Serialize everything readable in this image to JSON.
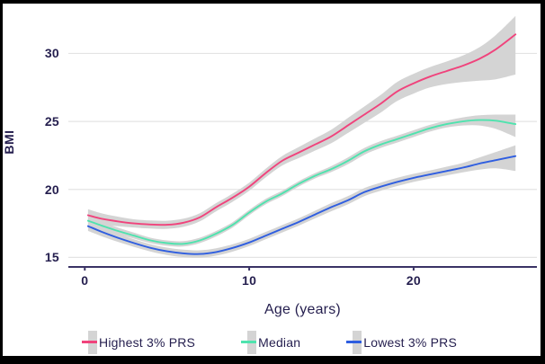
{
  "figure": {
    "background": "#ffffff",
    "frame_color": "#000000",
    "text_color": "#241e4e",
    "axis_color": "#3a3365",
    "grid_color": "#e4e4e4",
    "band_color": "#d4d4d4"
  },
  "chart_data": {
    "type": "line",
    "title": "",
    "xlabel": "Age (years)",
    "ylabel": "BMI",
    "xlim": [
      -1,
      27.5
    ],
    "ylim": [
      14.3,
      33.4
    ],
    "x_ticks": [
      0,
      10,
      20
    ],
    "y_ticks": [
      15,
      20,
      25,
      30
    ],
    "grid": true,
    "legend_position": "bottom",
    "x": [
      0.2,
      1,
      2,
      3,
      4,
      5,
      6,
      7,
      8,
      9,
      10,
      11,
      12,
      13,
      14,
      15,
      16,
      17,
      18,
      19,
      20,
      21,
      22,
      23,
      24,
      25,
      26.2
    ],
    "series": [
      {
        "name": "Highest 3% PRS",
        "color": "#f0437c",
        "values": [
          18.1,
          17.85,
          17.65,
          17.5,
          17.42,
          17.4,
          17.55,
          17.95,
          18.7,
          19.4,
          20.2,
          21.2,
          22.1,
          22.7,
          23.3,
          23.9,
          24.7,
          25.5,
          26.3,
          27.2,
          27.8,
          28.3,
          28.7,
          29.1,
          29.6,
          30.3,
          31.4
        ],
        "band_upper": [
          18.55,
          18.25,
          18.0,
          17.8,
          17.72,
          17.7,
          17.85,
          18.25,
          19.0,
          19.7,
          20.5,
          21.52,
          22.45,
          23.1,
          23.75,
          24.4,
          25.25,
          26.1,
          26.95,
          27.9,
          28.5,
          29.0,
          29.4,
          29.85,
          30.45,
          31.35,
          32.75
        ],
        "band_lower": [
          17.65,
          17.45,
          17.3,
          17.2,
          17.12,
          17.1,
          17.25,
          17.65,
          18.4,
          19.1,
          19.9,
          20.88,
          21.75,
          22.3,
          22.85,
          23.4,
          24.15,
          24.9,
          25.65,
          26.5,
          27.05,
          27.5,
          27.75,
          27.9,
          28.0,
          28.1,
          28.45
        ]
      },
      {
        "name": "Median",
        "color": "#4fe3ae",
        "values": [
          17.7,
          17.35,
          16.95,
          16.6,
          16.25,
          16.05,
          16.0,
          16.25,
          16.75,
          17.4,
          18.3,
          19.1,
          19.7,
          20.4,
          21.0,
          21.5,
          22.1,
          22.8,
          23.3,
          23.7,
          24.1,
          24.5,
          24.8,
          25.0,
          25.1,
          25.05,
          24.8
        ],
        "band_upper": [
          18.0,
          17.63,
          17.2,
          16.82,
          16.45,
          16.25,
          16.2,
          16.45,
          16.95,
          17.6,
          18.5,
          19.3,
          19.9,
          20.6,
          21.2,
          21.72,
          22.35,
          23.05,
          23.55,
          23.95,
          24.35,
          24.75,
          25.05,
          25.3,
          25.45,
          25.5,
          25.5
        ],
        "band_lower": [
          17.4,
          17.07,
          16.7,
          16.38,
          16.05,
          15.85,
          15.8,
          16.05,
          16.55,
          17.2,
          18.1,
          18.9,
          19.5,
          20.2,
          20.8,
          21.28,
          21.85,
          22.55,
          23.05,
          23.45,
          23.85,
          24.25,
          24.55,
          24.7,
          24.7,
          24.45,
          23.85
        ]
      },
      {
        "name": "Lowest 3% PRS",
        "color": "#2f5ee0",
        "values": [
          17.3,
          16.9,
          16.45,
          16.05,
          15.7,
          15.45,
          15.3,
          15.25,
          15.4,
          15.7,
          16.1,
          16.6,
          17.1,
          17.6,
          18.15,
          18.7,
          19.2,
          19.8,
          20.2,
          20.55,
          20.85,
          21.1,
          21.35,
          21.6,
          21.9,
          22.15,
          22.45
        ],
        "band_upper": [
          17.65,
          17.23,
          16.75,
          16.33,
          15.97,
          15.72,
          15.57,
          15.52,
          15.67,
          15.97,
          16.37,
          16.87,
          17.37,
          17.87,
          18.43,
          19.0,
          19.5,
          20.1,
          20.5,
          20.85,
          21.15,
          21.4,
          21.67,
          21.95,
          22.35,
          22.75,
          23.25
        ],
        "band_lower": [
          16.95,
          16.57,
          16.15,
          15.77,
          15.43,
          15.18,
          15.03,
          14.98,
          15.13,
          15.43,
          15.83,
          16.33,
          16.83,
          17.33,
          17.87,
          18.4,
          18.9,
          19.5,
          19.9,
          20.25,
          20.55,
          20.8,
          21.03,
          21.25,
          21.45,
          21.55,
          21.35
        ]
      }
    ]
  }
}
